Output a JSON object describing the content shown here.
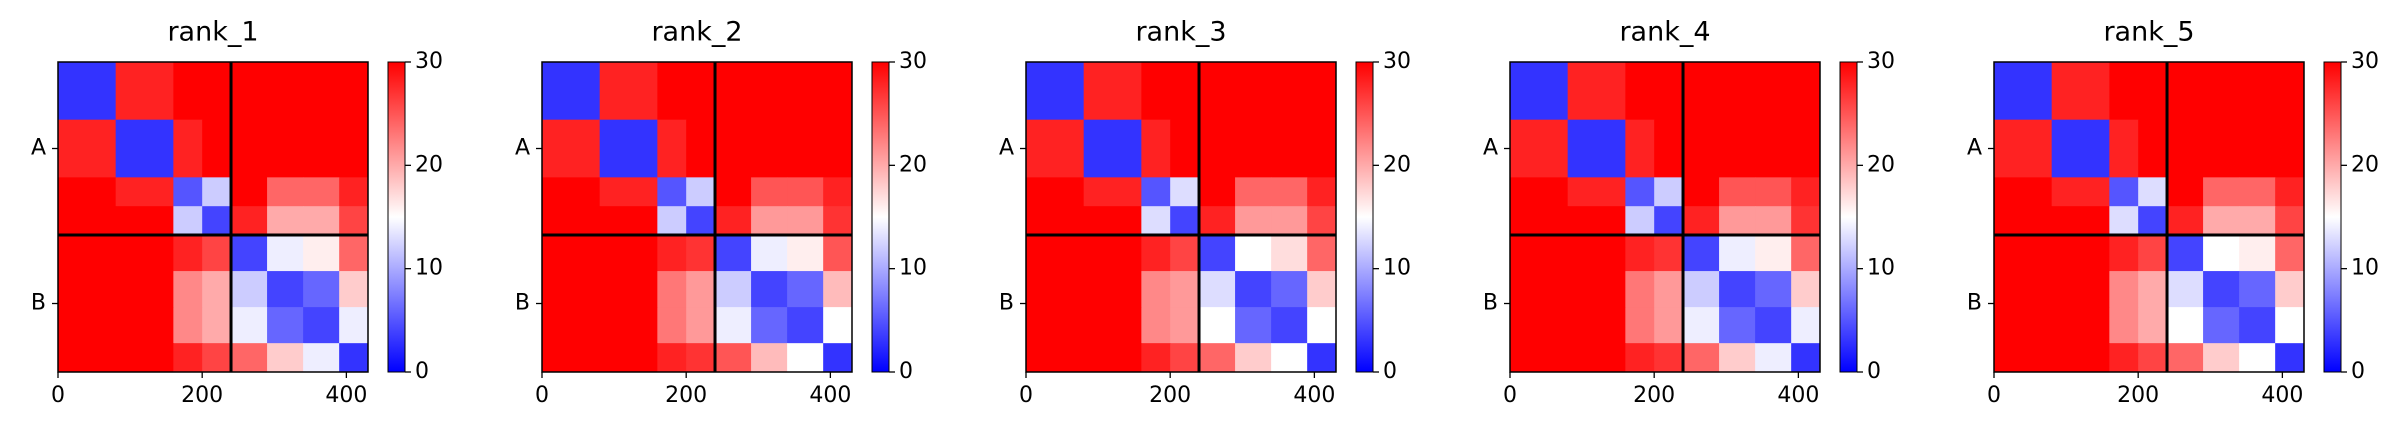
{
  "chart_data": [
    {
      "type": "heatmap",
      "title": "rank_1",
      "bins": [
        0,
        80,
        160,
        200,
        240,
        290,
        340,
        390,
        430
      ],
      "xlim": [
        0,
        430
      ],
      "ylim": [
        430,
        0
      ],
      "xticks": [
        0,
        200,
        400
      ],
      "yticks": [
        {
          "value": 120,
          "label": "A"
        },
        {
          "value": 335,
          "label": "B"
        }
      ],
      "chain_breaks": [
        240
      ],
      "clim": [
        0,
        30
      ],
      "cticks": [
        0,
        10,
        20,
        30
      ],
      "colormap": [
        "#0000ff",
        "#ffffff",
        "#ff0000"
      ],
      "z": [
        [
          3,
          28,
          30,
          30,
          30,
          30,
          30,
          30
        ],
        [
          28,
          3,
          28,
          30,
          30,
          30,
          30,
          30
        ],
        [
          30,
          28,
          5,
          12,
          30,
          24,
          24,
          28
        ],
        [
          30,
          30,
          12,
          4,
          28,
          20,
          20,
          26
        ],
        [
          30,
          30,
          28,
          26,
          4,
          14,
          16,
          24
        ],
        [
          30,
          30,
          22,
          20,
          12,
          4,
          6,
          18
        ],
        [
          30,
          30,
          22,
          20,
          14,
          6,
          4,
          14
        ],
        [
          30,
          30,
          28,
          26,
          24,
          18,
          14,
          3
        ]
      ]
    },
    {
      "type": "heatmap",
      "title": "rank_2",
      "bins": [
        0,
        80,
        160,
        200,
        240,
        290,
        340,
        390,
        430
      ],
      "xlim": [
        0,
        430
      ],
      "ylim": [
        430,
        0
      ],
      "xticks": [
        0,
        200,
        400
      ],
      "yticks": [
        {
          "value": 120,
          "label": "A"
        },
        {
          "value": 335,
          "label": "B"
        }
      ],
      "chain_breaks": [
        240
      ],
      "clim": [
        0,
        30
      ],
      "cticks": [
        0,
        10,
        20,
        30
      ],
      "colormap": [
        "#0000ff",
        "#ffffff",
        "#ff0000"
      ],
      "z": [
        [
          3,
          28,
          30,
          30,
          30,
          30,
          30,
          30
        ],
        [
          28,
          3,
          28,
          30,
          30,
          30,
          30,
          30
        ],
        [
          30,
          28,
          5,
          12,
          30,
          25,
          25,
          28
        ],
        [
          30,
          30,
          12,
          4,
          28,
          21,
          21,
          27
        ],
        [
          30,
          30,
          28,
          27,
          4,
          14,
          16,
          25
        ],
        [
          30,
          30,
          23,
          21,
          12,
          4,
          6,
          19
        ],
        [
          30,
          30,
          23,
          21,
          14,
          6,
          4,
          15
        ],
        [
          30,
          30,
          28,
          27,
          25,
          19,
          15,
          3
        ]
      ]
    },
    {
      "type": "heatmap",
      "title": "rank_3",
      "bins": [
        0,
        80,
        160,
        200,
        240,
        290,
        340,
        390,
        430
      ],
      "xlim": [
        0,
        430
      ],
      "ylim": [
        430,
        0
      ],
      "xticks": [
        0,
        200,
        400
      ],
      "yticks": [
        {
          "value": 120,
          "label": "A"
        },
        {
          "value": 335,
          "label": "B"
        }
      ],
      "chain_breaks": [
        240
      ],
      "clim": [
        0,
        30
      ],
      "cticks": [
        0,
        10,
        20,
        30
      ],
      "colormap": [
        "#0000ff",
        "#ffffff",
        "#ff0000"
      ],
      "z": [
        [
          3,
          28,
          30,
          30,
          30,
          30,
          30,
          30
        ],
        [
          28,
          3,
          28,
          30,
          30,
          30,
          30,
          30
        ],
        [
          30,
          28,
          5,
          13,
          30,
          24,
          24,
          28
        ],
        [
          30,
          30,
          13,
          4,
          28,
          21,
          21,
          26
        ],
        [
          30,
          30,
          28,
          26,
          4,
          15,
          17,
          24
        ],
        [
          30,
          30,
          22,
          21,
          13,
          4,
          6,
          18
        ],
        [
          30,
          30,
          22,
          21,
          15,
          6,
          4,
          15
        ],
        [
          30,
          30,
          28,
          26,
          24,
          18,
          15,
          3
        ]
      ]
    },
    {
      "type": "heatmap",
      "title": "rank_4",
      "bins": [
        0,
        80,
        160,
        200,
        240,
        290,
        340,
        390,
        430
      ],
      "xlim": [
        0,
        430
      ],
      "ylim": [
        430,
        0
      ],
      "xticks": [
        0,
        200,
        400
      ],
      "yticks": [
        {
          "value": 120,
          "label": "A"
        },
        {
          "value": 335,
          "label": "B"
        }
      ],
      "chain_breaks": [
        240
      ],
      "clim": [
        0,
        30
      ],
      "cticks": [
        0,
        10,
        20,
        30
      ],
      "colormap": [
        "#0000ff",
        "#ffffff",
        "#ff0000"
      ],
      "z": [
        [
          3,
          28,
          30,
          30,
          30,
          30,
          30,
          30
        ],
        [
          28,
          3,
          28,
          30,
          30,
          30,
          30,
          30
        ],
        [
          30,
          28,
          5,
          12,
          30,
          25,
          25,
          28
        ],
        [
          30,
          30,
          12,
          4,
          28,
          21,
          21,
          27
        ],
        [
          30,
          30,
          28,
          27,
          4,
          14,
          16,
          24
        ],
        [
          30,
          30,
          23,
          21,
          12,
          4,
          6,
          18
        ],
        [
          30,
          30,
          23,
          21,
          14,
          6,
          4,
          14
        ],
        [
          30,
          30,
          28,
          27,
          24,
          18,
          14,
          3
        ]
      ]
    },
    {
      "type": "heatmap",
      "title": "rank_5",
      "bins": [
        0,
        80,
        160,
        200,
        240,
        290,
        340,
        390,
        430
      ],
      "xlim": [
        0,
        430
      ],
      "ylim": [
        430,
        0
      ],
      "xticks": [
        0,
        200,
        400
      ],
      "yticks": [
        {
          "value": 120,
          "label": "A"
        },
        {
          "value": 335,
          "label": "B"
        }
      ],
      "chain_breaks": [
        240
      ],
      "clim": [
        0,
        30
      ],
      "cticks": [
        0,
        10,
        20,
        30
      ],
      "colormap": [
        "#0000ff",
        "#ffffff",
        "#ff0000"
      ],
      "z": [
        [
          3,
          28,
          30,
          30,
          30,
          30,
          30,
          30
        ],
        [
          28,
          3,
          28,
          30,
          30,
          30,
          30,
          30
        ],
        [
          30,
          28,
          5,
          13,
          30,
          24,
          24,
          28
        ],
        [
          30,
          30,
          13,
          4,
          28,
          20,
          20,
          26
        ],
        [
          30,
          30,
          28,
          26,
          4,
          15,
          16,
          24
        ],
        [
          30,
          30,
          22,
          20,
          13,
          4,
          6,
          18
        ],
        [
          30,
          30,
          22,
          20,
          15,
          6,
          4,
          15
        ],
        [
          30,
          30,
          28,
          26,
          24,
          18,
          15,
          3
        ]
      ]
    }
  ]
}
